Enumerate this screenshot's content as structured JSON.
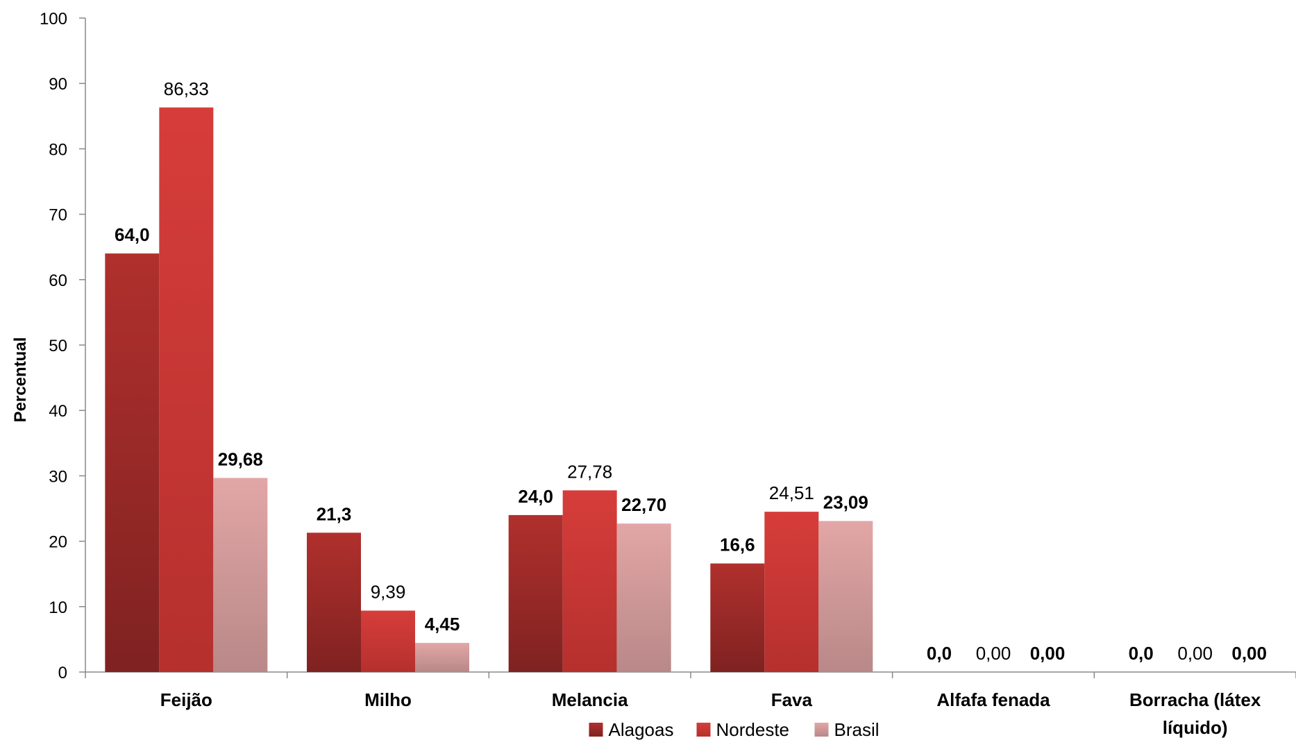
{
  "chart_data": {
    "type": "bar",
    "title": "",
    "xlabel": "",
    "ylabel": "Percentual",
    "ylim": [
      0,
      100
    ],
    "yticks": [
      "0",
      "10",
      "20",
      "30",
      "40",
      "50",
      "60",
      "70",
      "80",
      "90",
      "100"
    ],
    "grid": false,
    "legend_position": "bottom",
    "categories": [
      [
        "Feijão"
      ],
      [
        "Milho"
      ],
      [
        "Melancia"
      ],
      [
        "Fava"
      ],
      [
        "Alfafa fenada"
      ],
      [
        "Borracha (látex",
        "líquido)"
      ]
    ],
    "series": [
      {
        "name": "Alagoas",
        "color": "#9b2a28",
        "values": [
          64.0,
          21.3,
          24.0,
          16.6,
          0.0,
          0.0
        ],
        "labels": [
          "64,0",
          "21,3",
          "24,0",
          "16,6",
          "0,0",
          "0,0"
        ],
        "label_bold": true
      },
      {
        "name": "Nordeste",
        "color": "#cf3a37",
        "values": [
          86.33,
          9.39,
          27.78,
          24.51,
          0.0,
          0.0
        ],
        "labels": [
          "86,33",
          "9,39",
          "27,78",
          "24,51",
          "0,00",
          "0,00"
        ],
        "label_bold": false
      },
      {
        "name": "Brasil",
        "color": "#d9a0a0",
        "values": [
          29.68,
          4.45,
          22.7,
          23.09,
          0.0,
          0.0
        ],
        "labels": [
          "29,68",
          "4,45",
          "22,70",
          "23,09",
          "0,00",
          "0,00"
        ],
        "label_bold": true
      }
    ]
  }
}
